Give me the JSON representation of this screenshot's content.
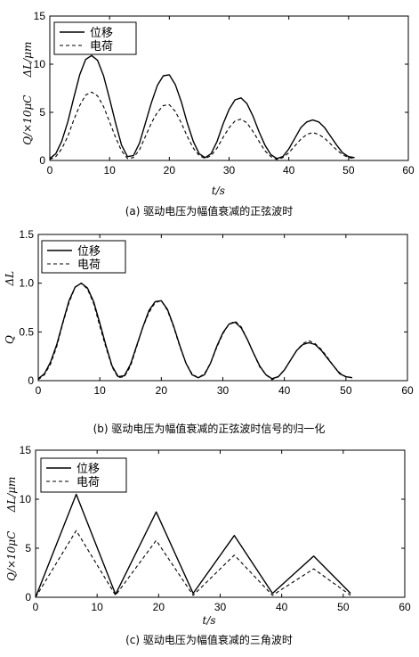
{
  "chart_data": [
    {
      "type": "line",
      "caption": "(a) 驱动电压为幅值衰减的正弦波时",
      "xlabel": "t/s",
      "ylabel_top": "ΔL/μm",
      "ylabel_bottom": "Q/×10μC",
      "xlim": [
        0,
        60
      ],
      "ylim": [
        0,
        15
      ],
      "xticks": [
        "0",
        "10",
        "20",
        "30",
        "40",
        "50",
        "60"
      ],
      "yticks": [
        "0",
        "5",
        "10",
        "15"
      ],
      "legend_position": "top-left",
      "series": [
        {
          "name": "位移",
          "style": "solid",
          "x": [
            0,
            1,
            2,
            3,
            4,
            5,
            6,
            7,
            8,
            9,
            10,
            11,
            12,
            13,
            14,
            15,
            16,
            17,
            18,
            19,
            20,
            21,
            22,
            23,
            24,
            25,
            26,
            27,
            28,
            29,
            30,
            31,
            32,
            33,
            34,
            35,
            36,
            37,
            38,
            39,
            40,
            41,
            42,
            43,
            44,
            45,
            46,
            47,
            48,
            49,
            50,
            51
          ],
          "y": [
            0.2,
            0.7,
            2.0,
            4.0,
            6.5,
            8.9,
            10.5,
            10.9,
            10.4,
            8.8,
            6.4,
            3.9,
            1.6,
            0.4,
            0.5,
            1.8,
            3.9,
            6.0,
            7.8,
            8.8,
            8.9,
            7.9,
            6.1,
            3.9,
            2.0,
            0.7,
            0.3,
            0.7,
            2.0,
            3.8,
            5.3,
            6.3,
            6.5,
            5.9,
            4.6,
            3.0,
            1.6,
            0.6,
            0.2,
            0.4,
            1.2,
            2.3,
            3.4,
            4.0,
            4.2,
            4.0,
            3.4,
            2.5,
            1.6,
            0.8,
            0.4,
            0.3
          ]
        },
        {
          "name": "电荷",
          "style": "dashed",
          "x": [
            0,
            1,
            2,
            3,
            4,
            5,
            6,
            7,
            8,
            9,
            10,
            11,
            12,
            13,
            14,
            15,
            16,
            17,
            18,
            19,
            20,
            21,
            22,
            23,
            24,
            25,
            26,
            27,
            28,
            29,
            30,
            31,
            32,
            33,
            34,
            35,
            36,
            37,
            38,
            39,
            40,
            41,
            42,
            43,
            44,
            45,
            46,
            47,
            48,
            49,
            50,
            51
          ],
          "y": [
            0.1,
            0.4,
            1.2,
            2.5,
            4.2,
            5.7,
            6.8,
            7.1,
            6.7,
            5.6,
            4.0,
            2.4,
            1.0,
            0.2,
            0.3,
            1.1,
            2.5,
            3.9,
            5.0,
            5.7,
            5.8,
            5.1,
            3.9,
            2.5,
            1.3,
            0.5,
            0.2,
            0.5,
            1.3,
            2.4,
            3.4,
            4.1,
            4.3,
            3.9,
            3.0,
            2.0,
            1.0,
            0.4,
            0.1,
            0.3,
            0.8,
            1.5,
            2.2,
            2.7,
            2.9,
            2.7,
            2.3,
            1.7,
            1.1,
            0.6,
            0.3,
            0.2
          ]
        }
      ]
    },
    {
      "type": "line",
      "caption": "(b) 驱动电压为幅值衰减的正弦波时信号的归一化",
      "xlabel": "",
      "ylabel_top": "ΔL",
      "ylabel_bottom": "Q",
      "xlim": [
        0,
        60
      ],
      "ylim": [
        0,
        1.5
      ],
      "xticks": [
        "0",
        "10",
        "20",
        "30",
        "40",
        "50",
        "60"
      ],
      "yticks": [
        "0",
        "0.5",
        "1.0",
        "1.5"
      ],
      "legend_position": "top-left",
      "series": [
        {
          "name": "位移",
          "style": "solid",
          "x": [
            0,
            1,
            2,
            3,
            4,
            5,
            6,
            7,
            8,
            9,
            10,
            11,
            12,
            13,
            14,
            15,
            16,
            17,
            18,
            19,
            20,
            21,
            22,
            23,
            24,
            25,
            26,
            27,
            28,
            29,
            30,
            31,
            32,
            33,
            34,
            35,
            36,
            37,
            38,
            39,
            40,
            41,
            42,
            43,
            44,
            45,
            46,
            47,
            48,
            49,
            50,
            51
          ],
          "y": [
            0.02,
            0.07,
            0.19,
            0.37,
            0.6,
            0.82,
            0.96,
            1.0,
            0.95,
            0.81,
            0.59,
            0.36,
            0.15,
            0.04,
            0.05,
            0.17,
            0.36,
            0.55,
            0.72,
            0.81,
            0.82,
            0.73,
            0.56,
            0.36,
            0.18,
            0.06,
            0.03,
            0.06,
            0.18,
            0.35,
            0.49,
            0.58,
            0.6,
            0.54,
            0.42,
            0.28,
            0.15,
            0.06,
            0.02,
            0.04,
            0.11,
            0.21,
            0.31,
            0.37,
            0.39,
            0.37,
            0.31,
            0.23,
            0.15,
            0.07,
            0.04,
            0.03
          ]
        },
        {
          "name": "电荷",
          "style": "dashed",
          "x": [
            0,
            1,
            2,
            3,
            4,
            5,
            6,
            7,
            8,
            9,
            10,
            11,
            12,
            13,
            14,
            15,
            16,
            17,
            18,
            19,
            20,
            21,
            22,
            23,
            24,
            25,
            26,
            27,
            28,
            29,
            30,
            31,
            32,
            33,
            34,
            35,
            36,
            37,
            38,
            39,
            40,
            41,
            42,
            43,
            44,
            45,
            46,
            47,
            48,
            49,
            50,
            51
          ],
          "y": [
            0.01,
            0.06,
            0.17,
            0.35,
            0.59,
            0.8,
            0.96,
            1.0,
            0.94,
            0.79,
            0.56,
            0.34,
            0.14,
            0.03,
            0.04,
            0.15,
            0.35,
            0.55,
            0.7,
            0.8,
            0.82,
            0.72,
            0.55,
            0.35,
            0.18,
            0.07,
            0.03,
            0.07,
            0.18,
            0.34,
            0.48,
            0.58,
            0.61,
            0.55,
            0.42,
            0.28,
            0.14,
            0.06,
            0.01,
            0.04,
            0.11,
            0.21,
            0.31,
            0.38,
            0.41,
            0.38,
            0.32,
            0.24,
            0.15,
            0.08,
            0.04,
            0.03
          ]
        }
      ]
    },
    {
      "type": "line",
      "caption": "(c) 驱动电压为幅值衰减的三角波时",
      "xlabel": "t/s",
      "ylabel_top": "ΔL/μm",
      "ylabel_bottom": "Q/×10μC",
      "xlim": [
        0,
        60
      ],
      "ylim": [
        0,
        15
      ],
      "xticks": [
        "0",
        "10",
        "20",
        "30",
        "40",
        "50",
        "60"
      ],
      "yticks": [
        "0",
        "5",
        "10",
        "15"
      ],
      "legend_position": "top-left",
      "series": [
        {
          "name": "位移",
          "style": "solid",
          "x": [
            0,
            6.6,
            13.0,
            19.6,
            25.6,
            32.3,
            38.5,
            45.2,
            51.2
          ],
          "y": [
            0,
            10.5,
            0.3,
            8.7,
            0.4,
            6.3,
            0.4,
            4.2,
            0.4
          ]
        },
        {
          "name": "电荷",
          "style": "dashed",
          "x": [
            0,
            6.6,
            13.0,
            19.6,
            25.6,
            32.3,
            38.5,
            45.2,
            51.2
          ],
          "y": [
            0,
            6.8,
            0.2,
            5.8,
            0.2,
            4.3,
            0.2,
            2.9,
            0.2
          ]
        }
      ]
    }
  ]
}
